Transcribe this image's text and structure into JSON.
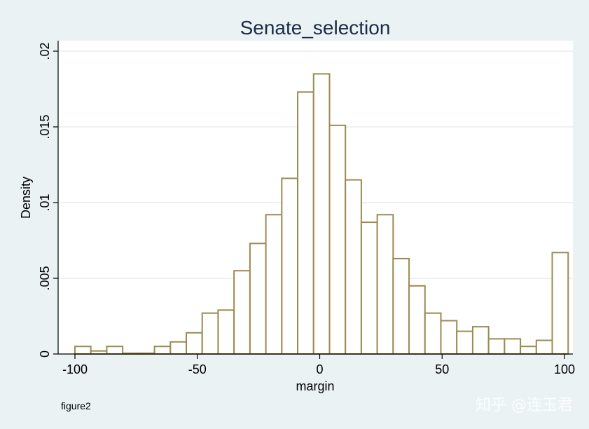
{
  "chart_data": {
    "type": "bar",
    "title": "Senate_selection",
    "xlabel": "margin",
    "ylabel": "Density",
    "note": "figure2",
    "xlim": [
      -100,
      100
    ],
    "ylim": [
      0,
      0.02
    ],
    "bin_width": 6.5,
    "x_ticks": [
      {
        "value": -100,
        "label": "-100"
      },
      {
        "value": -50,
        "label": "-50"
      },
      {
        "value": 0,
        "label": "0"
      },
      {
        "value": 50,
        "label": "50"
      },
      {
        "value": 100,
        "label": "100"
      }
    ],
    "y_ticks": [
      {
        "value": 0,
        "label": "0"
      },
      {
        "value": 0.005,
        "label": ".005"
      },
      {
        "value": 0.01,
        "label": ".01"
      },
      {
        "value": 0.015,
        "label": ".015"
      },
      {
        "value": 0.02,
        "label": ".02"
      }
    ],
    "grid": true,
    "bars": [
      {
        "x0": -100,
        "x1": -93.5,
        "density": 0.0005
      },
      {
        "x0": -93.5,
        "x1": -87,
        "density": 0.0002
      },
      {
        "x0": -87,
        "x1": -80.5,
        "density": 0.0005
      },
      {
        "x0": -80.5,
        "x1": -74,
        "density": 5e-05
      },
      {
        "x0": -74,
        "x1": -67.5,
        "density": 5e-05
      },
      {
        "x0": -67.5,
        "x1": -61,
        "density": 0.0005
      },
      {
        "x0": -61,
        "x1": -54.5,
        "density": 0.0008
      },
      {
        "x0": -54.5,
        "x1": -48,
        "density": 0.0014
      },
      {
        "x0": -48,
        "x1": -41.5,
        "density": 0.0027
      },
      {
        "x0": -41.5,
        "x1": -35,
        "density": 0.0029
      },
      {
        "x0": -35,
        "x1": -28.5,
        "density": 0.0055
      },
      {
        "x0": -28.5,
        "x1": -22,
        "density": 0.0073
      },
      {
        "x0": -22,
        "x1": -15.5,
        "density": 0.0092
      },
      {
        "x0": -15.5,
        "x1": -9,
        "density": 0.0116
      },
      {
        "x0": -9,
        "x1": -2.5,
        "density": 0.0173
      },
      {
        "x0": -2.5,
        "x1": 4,
        "density": 0.0185
      },
      {
        "x0": 4,
        "x1": 10.5,
        "density": 0.0151
      },
      {
        "x0": 10.5,
        "x1": 17,
        "density": 0.0115
      },
      {
        "x0": 17,
        "x1": 23.5,
        "density": 0.0087
      },
      {
        "x0": 23.5,
        "x1": 30,
        "density": 0.0092
      },
      {
        "x0": 30,
        "x1": 36.5,
        "density": 0.0063
      },
      {
        "x0": 36.5,
        "x1": 43,
        "density": 0.0045
      },
      {
        "x0": 43,
        "x1": 49.5,
        "density": 0.0027
      },
      {
        "x0": 49.5,
        "x1": 56,
        "density": 0.0022
      },
      {
        "x0": 56,
        "x1": 62.5,
        "density": 0.0015
      },
      {
        "x0": 62.5,
        "x1": 69,
        "density": 0.0018
      },
      {
        "x0": 69,
        "x1": 75.5,
        "density": 0.001
      },
      {
        "x0": 75.5,
        "x1": 82,
        "density": 0.001
      },
      {
        "x0": 82,
        "x1": 88.5,
        "density": 0.0005
      },
      {
        "x0": 88.5,
        "x1": 95,
        "density": 0.0009
      },
      {
        "x0": 95,
        "x1": 101.5,
        "density": 0.0067
      }
    ],
    "colors": {
      "bar_fill": "#ffffff",
      "bar_stroke": "#9b8a50",
      "plot_bg": "#ffffff",
      "page_bg": "#eaf2f3",
      "grid": "#e6eef0",
      "title": "#1a2a48"
    }
  },
  "watermark": "知乎 @连玉君"
}
